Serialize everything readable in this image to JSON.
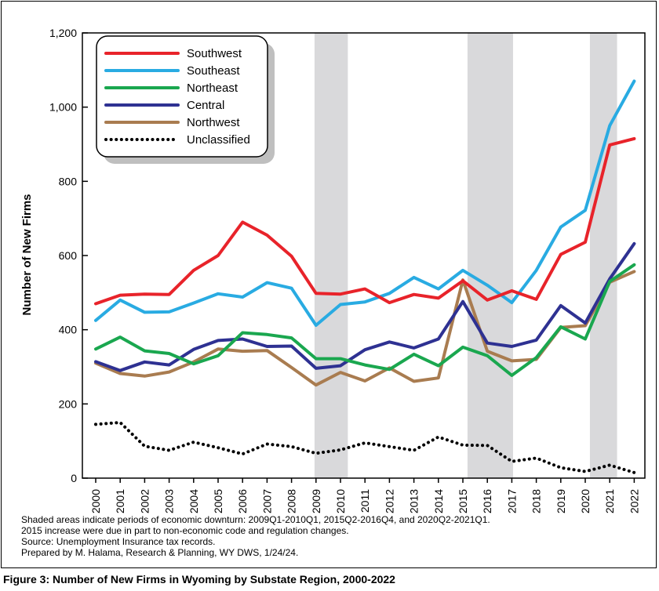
{
  "chart_data": {
    "type": "line",
    "title": "",
    "xlabel": "",
    "ylabel": "Number of New Firms",
    "ylim": [
      0,
      1200
    ],
    "yticks": [
      0,
      200,
      400,
      600,
      800,
      1000,
      1200
    ],
    "ytick_labels": [
      "0",
      "200",
      "400",
      "600",
      "800",
      "1,000",
      "1,200"
    ],
    "x": [
      "2000",
      "2001",
      "2002",
      "2003",
      "2004",
      "2005",
      "2006",
      "2007",
      "2008",
      "2009",
      "2010",
      "2011",
      "2012",
      "2013",
      "2014",
      "2015",
      "2016",
      "2017",
      "2018",
      "2019",
      "2020",
      "2021",
      "2022"
    ],
    "shaded_periods": [
      [
        "2009Q1",
        "2010Q1"
      ],
      [
        "2015Q2",
        "2016Q4"
      ],
      [
        "2020Q2",
        "2021Q1"
      ]
    ],
    "legend_position": "top-left",
    "series": [
      {
        "name": "Southwest",
        "color": "#e8232a",
        "style": "solid",
        "values": [
          470,
          493,
          496,
          495,
          560,
          600,
          690,
          655,
          598,
          498,
          496,
          510,
          473,
          495,
          485,
          532,
          480,
          505,
          482,
          603,
          636,
          898,
          915
        ]
      },
      {
        "name": "Southeast",
        "color": "#29abe2",
        "style": "solid",
        "values": [
          425,
          480,
          447,
          448,
          472,
          497,
          488,
          527,
          512,
          412,
          468,
          475,
          498,
          541,
          510,
          560,
          520,
          473,
          560,
          677,
          722,
          950,
          1070
        ]
      },
      {
        "name": "Northeast",
        "color": "#1aa74f",
        "style": "solid",
        "values": [
          348,
          380,
          343,
          336,
          308,
          330,
          392,
          387,
          378,
          322,
          322,
          305,
          293,
          334,
          303,
          353,
          330,
          277,
          325,
          408,
          375,
          530,
          575
        ]
      },
      {
        "name": "Central",
        "color": "#2e3192",
        "style": "solid",
        "values": [
          314,
          290,
          313,
          305,
          347,
          371,
          375,
          355,
          356,
          296,
          303,
          346,
          367,
          351,
          375,
          476,
          364,
          355,
          372,
          465,
          418,
          537,
          632
        ]
      },
      {
        "name": "Northwest",
        "color": "#a97c50",
        "style": "solid",
        "values": [
          310,
          282,
          275,
          286,
          313,
          348,
          342,
          344,
          298,
          251,
          285,
          262,
          297,
          261,
          270,
          534,
          342,
          316,
          320,
          406,
          411,
          528,
          557
        ]
      },
      {
        "name": "Unclassified",
        "color": "#000000",
        "style": "dotted",
        "values": [
          145,
          150,
          86,
          75,
          97,
          82,
          65,
          92,
          85,
          67,
          76,
          95,
          85,
          75,
          111,
          89,
          88,
          45,
          54,
          28,
          18,
          35,
          15
        ]
      }
    ]
  },
  "notes": {
    "line1": "Shaded areas indicate periods of economic downturn: 2009Q1-2010Q1, 2015Q2-2016Q4, and 2020Q2-2021Q1.",
    "line2": "2015 increase were due in part to non-economic code and regulation changes.",
    "line3": "Source: Unemployment Insurance tax records.",
    "line4": "Prepared by M. Halama, Research & Planning, WY DWS, 1/24/24."
  },
  "caption": "Figure 3: Number of New Firms in Wyoming by Substate Region, 2000-2022"
}
